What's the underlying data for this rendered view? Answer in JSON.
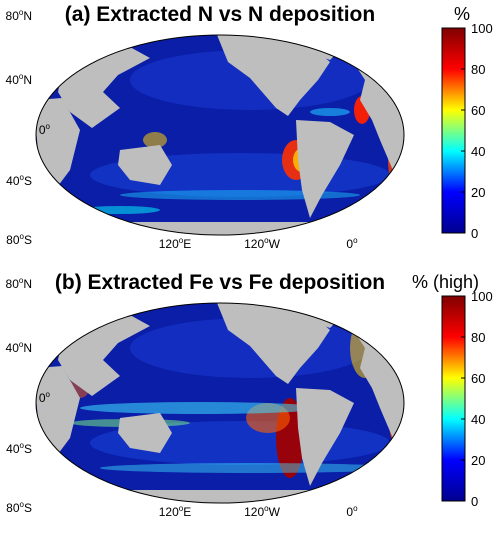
{
  "panels": [
    {
      "title": "(a) Extracted N vs N deposition",
      "unit": "%",
      "lat_labels": [
        "80",
        "40",
        "0",
        "40",
        "80"
      ],
      "lat_suffix": [
        "N",
        "N",
        "",
        "S",
        "S"
      ],
      "lon_labels": [
        "120",
        "120",
        "0"
      ],
      "lon_suffix": [
        "E",
        "W",
        ""
      ],
      "colorbar_ticks": [
        "100",
        "80",
        "60",
        "40",
        "20",
        "0"
      ],
      "colorbar_range": [
        0,
        100
      ]
    },
    {
      "title": "(b) Extracted Fe vs Fe deposition",
      "unit": "% (high)",
      "lat_labels": [
        "80",
        "40",
        "0",
        "40",
        "80"
      ],
      "lat_suffix": [
        "N",
        "N",
        "",
        "S",
        "S"
      ],
      "lon_labels": [
        "120",
        "120",
        "0"
      ],
      "lon_suffix": [
        "E",
        "W",
        ""
      ],
      "colorbar_ticks": [
        "100",
        "80",
        "60",
        "40",
        "20",
        "0"
      ],
      "colorbar_range": [
        0,
        100
      ]
    }
  ],
  "degree_symbol": "o",
  "colors": {
    "ocean_low": "#0a1ea8",
    "land": "#bebebe",
    "colormap": [
      "#00008f",
      "#0000ff",
      "#00ffff",
      "#ffff00",
      "#ff0000",
      "#800000"
    ]
  }
}
